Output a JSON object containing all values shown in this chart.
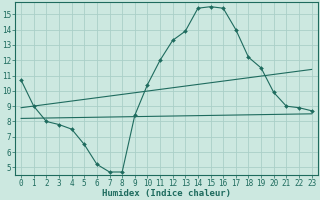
{
  "x": [
    0,
    1,
    2,
    3,
    4,
    5,
    6,
    7,
    8,
    9,
    10,
    11,
    12,
    13,
    14,
    15,
    16,
    17,
    18,
    19,
    20,
    21,
    22,
    23
  ],
  "main_curve": [
    10.7,
    9.0,
    8.0,
    7.8,
    7.5,
    6.5,
    5.2,
    4.7,
    4.7,
    8.4,
    10.4,
    12.0,
    13.3,
    13.9,
    15.4,
    15.5,
    15.4,
    14.0,
    12.2,
    11.5,
    9.9,
    9.0,
    8.9,
    8.7
  ],
  "line1_x": [
    0,
    23
  ],
  "line1_y": [
    8.9,
    11.4
  ],
  "line2_x": [
    0,
    23
  ],
  "line2_y": [
    8.2,
    8.5
  ],
  "bg_color": "#cce8e0",
  "grid_color": "#aacfc8",
  "line_color": "#1e6b5e",
  "xlabel": "Humidex (Indice chaleur)",
  "ylim": [
    4.5,
    15.8
  ],
  "xlim": [
    -0.5,
    23.5
  ],
  "yticks": [
    5,
    6,
    7,
    8,
    9,
    10,
    11,
    12,
    13,
    14,
    15
  ],
  "xticks": [
    0,
    1,
    2,
    3,
    4,
    5,
    6,
    7,
    8,
    9,
    10,
    11,
    12,
    13,
    14,
    15,
    16,
    17,
    18,
    19,
    20,
    21,
    22,
    23
  ],
  "font_color": "#1e6b5e",
  "tick_fontsize": 5.5,
  "xlabel_fontsize": 6.5
}
